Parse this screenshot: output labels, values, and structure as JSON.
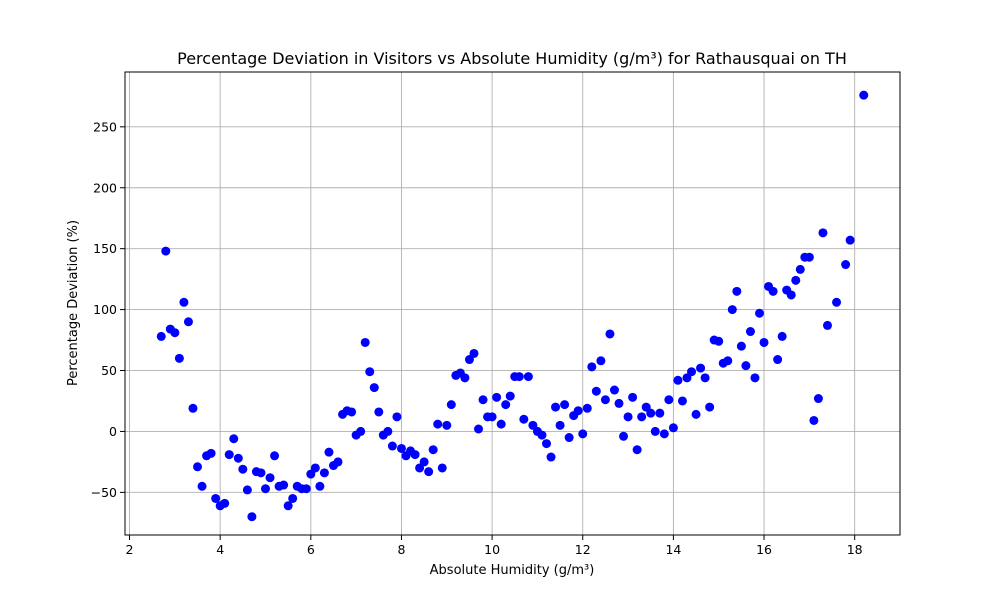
{
  "chart_data": {
    "type": "scatter",
    "title": "Percentage Deviation in Visitors vs Absolute Humidity (g/m³) for Rathausquai on TH",
    "xlabel": "Absolute Humidity (g/m³)",
    "ylabel": "Percentage Deviation (%)",
    "xlim": [
      1.9,
      19.0
    ],
    "ylim": [
      -85,
      295
    ],
    "xticks": [
      2,
      4,
      6,
      8,
      10,
      12,
      14,
      16,
      18
    ],
    "yticks": [
      -50,
      0,
      50,
      100,
      150,
      200,
      250
    ],
    "grid": true,
    "marker_color": "#0000ff",
    "points": [
      [
        2.7,
        78
      ],
      [
        2.8,
        148
      ],
      [
        2.9,
        84
      ],
      [
        3.0,
        81
      ],
      [
        3.1,
        60
      ],
      [
        3.2,
        106
      ],
      [
        3.3,
        90
      ],
      [
        3.4,
        19
      ],
      [
        3.5,
        -29
      ],
      [
        3.6,
        -45
      ],
      [
        3.7,
        -20
      ],
      [
        3.8,
        -18
      ],
      [
        3.9,
        -55
      ],
      [
        4.0,
        -61
      ],
      [
        4.1,
        -59
      ],
      [
        4.2,
        -19
      ],
      [
        4.3,
        -6
      ],
      [
        4.4,
        -22
      ],
      [
        4.5,
        -31
      ],
      [
        4.6,
        -48
      ],
      [
        4.7,
        -70
      ],
      [
        4.8,
        -33
      ],
      [
        4.9,
        -34
      ],
      [
        5.0,
        -47
      ],
      [
        5.1,
        -38
      ],
      [
        5.2,
        -20
      ],
      [
        5.3,
        -45
      ],
      [
        5.4,
        -44
      ],
      [
        5.5,
        -61
      ],
      [
        5.6,
        -55
      ],
      [
        5.7,
        -45
      ],
      [
        5.8,
        -47
      ],
      [
        5.9,
        -47
      ],
      [
        6.0,
        -35
      ],
      [
        6.1,
        -30
      ],
      [
        6.2,
        -45
      ],
      [
        6.3,
        -34
      ],
      [
        6.4,
        -17
      ],
      [
        6.5,
        -28
      ],
      [
        6.6,
        -25
      ],
      [
        6.7,
        14
      ],
      [
        6.8,
        17
      ],
      [
        6.9,
        16
      ],
      [
        7.0,
        -3
      ],
      [
        7.1,
        0
      ],
      [
        7.2,
        73
      ],
      [
        7.3,
        49
      ],
      [
        7.4,
        36
      ],
      [
        7.5,
        16
      ],
      [
        7.6,
        -3
      ],
      [
        7.7,
        0
      ],
      [
        7.8,
        -12
      ],
      [
        7.9,
        12
      ],
      [
        8.0,
        -14
      ],
      [
        8.1,
        -20
      ],
      [
        8.2,
        -16
      ],
      [
        8.3,
        -19
      ],
      [
        8.4,
        -30
      ],
      [
        8.5,
        -25
      ],
      [
        8.6,
        -33
      ],
      [
        8.7,
        -15
      ],
      [
        8.8,
        6
      ],
      [
        8.9,
        -30
      ],
      [
        9.0,
        5
      ],
      [
        9.1,
        22
      ],
      [
        9.2,
        46
      ],
      [
        9.3,
        48
      ],
      [
        9.4,
        44
      ],
      [
        9.5,
        59
      ],
      [
        9.6,
        64
      ],
      [
        9.7,
        2
      ],
      [
        9.8,
        26
      ],
      [
        9.9,
        12
      ],
      [
        10.0,
        12
      ],
      [
        10.1,
        28
      ],
      [
        10.2,
        6
      ],
      [
        10.3,
        22
      ],
      [
        10.4,
        29
      ],
      [
        10.5,
        45
      ],
      [
        10.6,
        45
      ],
      [
        10.7,
        10
      ],
      [
        10.8,
        45
      ],
      [
        10.9,
        5
      ],
      [
        11.0,
        0
      ],
      [
        11.1,
        -3
      ],
      [
        11.2,
        -10
      ],
      [
        11.3,
        -21
      ],
      [
        11.4,
        20
      ],
      [
        11.5,
        5
      ],
      [
        11.6,
        22
      ],
      [
        11.7,
        -5
      ],
      [
        11.8,
        13
      ],
      [
        11.9,
        17
      ],
      [
        12.0,
        -2
      ],
      [
        12.1,
        19
      ],
      [
        12.2,
        53
      ],
      [
        12.3,
        33
      ],
      [
        12.4,
        58
      ],
      [
        12.5,
        26
      ],
      [
        12.6,
        80
      ],
      [
        12.7,
        34
      ],
      [
        12.8,
        23
      ],
      [
        12.9,
        -4
      ],
      [
        13.0,
        12
      ],
      [
        13.1,
        28
      ],
      [
        13.2,
        -15
      ],
      [
        13.3,
        12
      ],
      [
        13.4,
        20
      ],
      [
        13.5,
        15
      ],
      [
        13.6,
        0
      ],
      [
        13.7,
        15
      ],
      [
        13.8,
        -2
      ],
      [
        13.9,
        26
      ],
      [
        14.0,
        3
      ],
      [
        14.1,
        42
      ],
      [
        14.2,
        25
      ],
      [
        14.3,
        44
      ],
      [
        14.4,
        49
      ],
      [
        14.5,
        14
      ],
      [
        14.6,
        52
      ],
      [
        14.7,
        44
      ],
      [
        14.8,
        20
      ],
      [
        14.9,
        75
      ],
      [
        15.0,
        74
      ],
      [
        15.1,
        56
      ],
      [
        15.2,
        58
      ],
      [
        15.3,
        100
      ],
      [
        15.4,
        115
      ],
      [
        15.5,
        70
      ],
      [
        15.6,
        54
      ],
      [
        15.7,
        82
      ],
      [
        15.8,
        44
      ],
      [
        15.9,
        97
      ],
      [
        16.0,
        73
      ],
      [
        16.1,
        119
      ],
      [
        16.2,
        115
      ],
      [
        16.3,
        59
      ],
      [
        16.4,
        78
      ],
      [
        16.5,
        116
      ],
      [
        16.6,
        112
      ],
      [
        16.7,
        124
      ],
      [
        16.8,
        133
      ],
      [
        16.9,
        143
      ],
      [
        17.0,
        143
      ],
      [
        17.1,
        9
      ],
      [
        17.2,
        27
      ],
      [
        17.3,
        163
      ],
      [
        17.4,
        87
      ],
      [
        17.6,
        106
      ],
      [
        17.8,
        137
      ],
      [
        17.9,
        157
      ],
      [
        18.2,
        276
      ]
    ]
  }
}
